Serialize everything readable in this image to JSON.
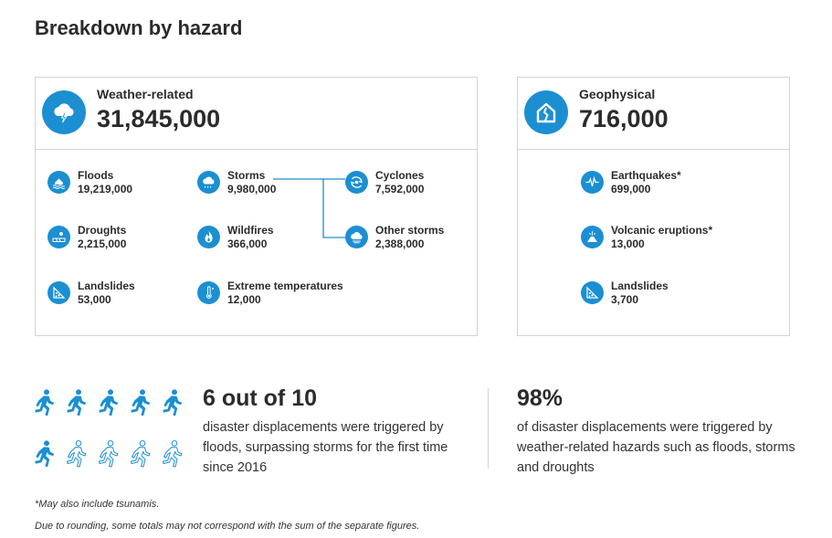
{
  "title": "Breakdown by hazard",
  "weather": {
    "label": "Weather-related",
    "total": "31,845,000",
    "icon": "storm-cloud-icon",
    "items": {
      "floods": {
        "name": "Floods",
        "value": "19,219,000",
        "icon": "flood-icon"
      },
      "storms": {
        "name": "Storms",
        "value": "9,980,000",
        "icon": "storm-icon"
      },
      "cyclones": {
        "name": "Cyclones",
        "value": "7,592,000",
        "icon": "cyclone-icon"
      },
      "droughts": {
        "name": "Droughts",
        "value": "2,215,000",
        "icon": "drought-icon"
      },
      "wildfires": {
        "name": "Wildfires",
        "value": "366,000",
        "icon": "wildfire-icon"
      },
      "other_storms": {
        "name": "Other storms",
        "value": "2,388,000",
        "icon": "other-storms-icon"
      },
      "landslides": {
        "name": "Landslides",
        "value": "53,000",
        "icon": "landslide-icon"
      },
      "extreme_temps": {
        "name": "Extreme temperatures",
        "value": "12,000",
        "icon": "thermometer-icon"
      }
    }
  },
  "geophysical": {
    "label": "Geophysical",
    "total": "716,000",
    "icon": "cracked-house-icon",
    "items": {
      "earthquakes": {
        "name": "Earthquakes*",
        "value": "699,000",
        "icon": "seismograph-icon"
      },
      "volcanic": {
        "name": "Volcanic eruptions*",
        "value": "13,000",
        "icon": "volcano-icon"
      },
      "landslides": {
        "name": "Landslides",
        "value": "3,700",
        "icon": "landslide-icon"
      }
    }
  },
  "stat_left": {
    "headline": "6 out of 10",
    "text": "disaster displacements were triggered by floods, surpassing storms for the first time since 2016",
    "filled_runners": 6,
    "total_runners": 10
  },
  "stat_right": {
    "headline": "98%",
    "text": "of disaster displacements were triggered by weather-related hazards such as floods, storms and droughts"
  },
  "footnotes": {
    "note1": "*May also include tsunamis.",
    "note2": "Due to rounding, some totals may not correspond with the sum of the separate figures."
  },
  "colors": {
    "accent": "#1b8fd2",
    "text": "#2b2b2b",
    "border": "#d4d4d4"
  }
}
